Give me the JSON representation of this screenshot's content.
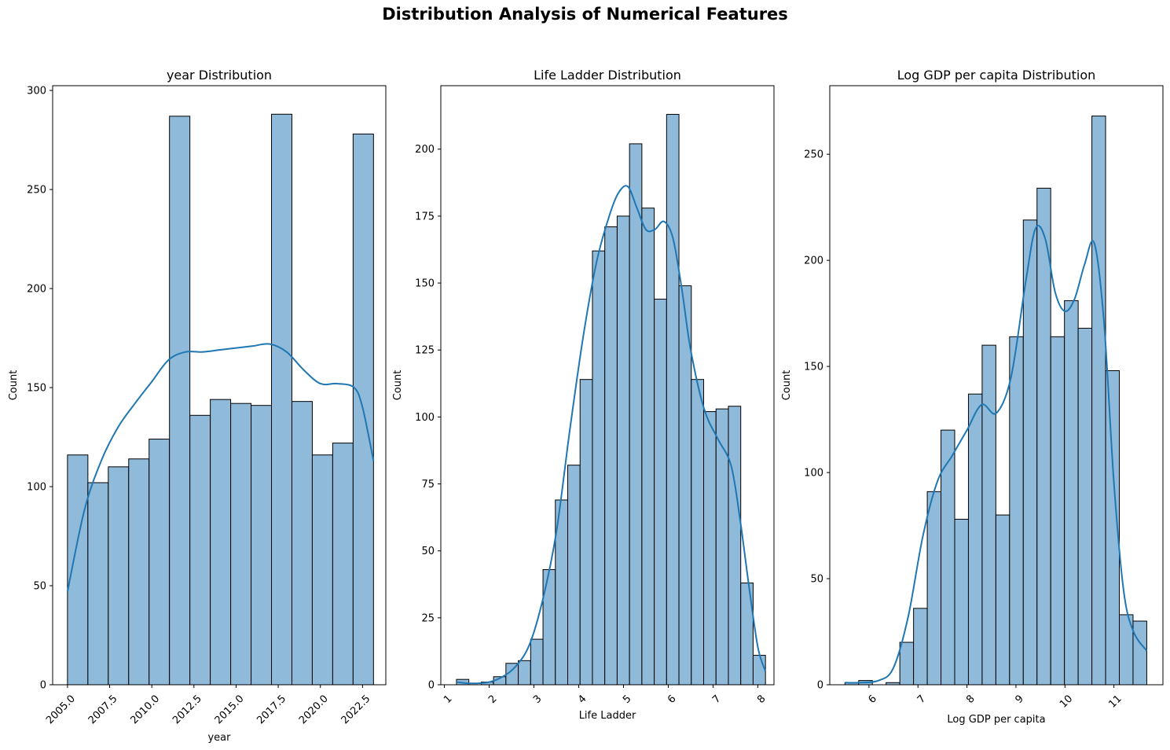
{
  "figure": {
    "title": "Distribution Analysis of Numerical Features"
  },
  "colors": {
    "bar_fill": "#8fbad9",
    "bar_edge": "#000000",
    "kde": "#1f77b4"
  },
  "chart_data": [
    {
      "type": "histogram",
      "title": "year Distribution",
      "xlabel": "year",
      "ylabel": "Count",
      "xlim": [
        2004.12,
        2023.88
      ],
      "ylim": [
        0,
        302.4
      ],
      "xticks": [
        2005.0,
        2007.5,
        2010.0,
        2012.5,
        2015.0,
        2017.5,
        2020.0,
        2022.5
      ],
      "xtick_labels": [
        "2005.0",
        "2007.5",
        "2010.0",
        "2012.5",
        "2015.0",
        "2017.5",
        "2020.0",
        "2022.5"
      ],
      "xtick_rotation": -45,
      "yticks": [
        0,
        50,
        100,
        150,
        200,
        250,
        300
      ],
      "ytick_labels": [
        "0",
        "50",
        "100",
        "150",
        "200",
        "250",
        "300"
      ],
      "bin_edges": [
        2005.0,
        2006.21,
        2007.42,
        2008.63,
        2009.84,
        2011.05,
        2012.26,
        2013.47,
        2014.68,
        2015.89,
        2017.1,
        2018.31,
        2019.52,
        2020.73,
        2021.94,
        2023.15
      ],
      "counts": [
        116,
        102,
        110,
        114,
        124,
        287,
        136,
        144,
        142,
        141,
        288,
        143,
        116,
        122,
        278
      ],
      "kde": {
        "x": [
          2005.0,
          2006.0,
          2007.0,
          2008.0,
          2009.0,
          2010.0,
          2011.0,
          2012.0,
          2013.0,
          2014.0,
          2015.0,
          2016.0,
          2017.0,
          2018.0,
          2019.0,
          2020.0,
          2021.0,
          2022.0,
          2022.5,
          2023.15
        ],
        "y": [
          47,
          88,
          113,
          130,
          142,
          153,
          164,
          168,
          168,
          169,
          170,
          171,
          172,
          168,
          159,
          152,
          152,
          150,
          140,
          113
        ]
      }
    },
    {
      "type": "histogram",
      "title": "Life Ladder Distribution",
      "xlabel": "Life Ladder",
      "ylabel": "Count",
      "xlim": [
        0.92,
        8.36
      ],
      "ylim": [
        0,
        223.7
      ],
      "xticks": [
        1,
        2,
        3,
        4,
        5,
        6,
        7,
        8
      ],
      "xtick_labels": [
        "1",
        "2",
        "3",
        "4",
        "5",
        "6",
        "7",
        "8"
      ],
      "xtick_rotation": -45,
      "yticks": [
        0,
        25,
        50,
        75,
        100,
        125,
        150,
        175,
        200
      ],
      "ytick_labels": [
        "0",
        "25",
        "50",
        "75",
        "100",
        "125",
        "150",
        "175",
        "200"
      ],
      "bin_edges": [
        1.27,
        1.546,
        1.822,
        2.098,
        2.374,
        2.65,
        2.926,
        3.202,
        3.478,
        3.754,
        4.03,
        4.306,
        4.582,
        4.858,
        5.134,
        5.41,
        5.686,
        5.962,
        6.238,
        6.514,
        6.79,
        7.066,
        7.342,
        7.618,
        7.894,
        8.17
      ],
      "counts": [
        2,
        0,
        1,
        3,
        8,
        9,
        17,
        43,
        69,
        82,
        114,
        162,
        171,
        175,
        202,
        178,
        144,
        213,
        149,
        114,
        102,
        103,
        104,
        38,
        11
      ],
      "kde": {
        "x": [
          1.27,
          1.6,
          2.0,
          2.3,
          2.6,
          2.9,
          3.2,
          3.5,
          3.8,
          4.1,
          4.4,
          4.7,
          4.9,
          5.1,
          5.3,
          5.5,
          5.7,
          5.9,
          6.1,
          6.3,
          6.5,
          6.8,
          7.1,
          7.4,
          7.6,
          7.8,
          8.0,
          8.17
        ],
        "y": [
          1,
          0.5,
          1,
          3,
          7,
          15,
          32,
          57,
          95,
          130,
          158,
          176,
          184,
          186,
          178,
          170,
          170,
          173,
          167,
          148,
          125,
          103,
          92,
          82,
          62,
          37,
          14,
          5
        ]
      }
    },
    {
      "type": "histogram",
      "title": "Log GDP per capita Distribution",
      "xlabel": "Log GDP per capita",
      "ylabel": "Count",
      "xlim": [
        5.2,
        12.0
      ],
      "ylim": [
        0,
        282.3
      ],
      "xticks": [
        6,
        7,
        8,
        9,
        10,
        11
      ],
      "xtick_labels": [
        "6",
        "7",
        "8",
        "9",
        "10",
        "11"
      ],
      "xtick_rotation": -45,
      "yticks": [
        0,
        50,
        100,
        150,
        200,
        250
      ],
      "ytick_labels": [
        "0",
        "50",
        "100",
        "150",
        "200",
        "250"
      ],
      "bin_edges": [
        5.51,
        5.79,
        6.07,
        6.35,
        6.63,
        6.91,
        7.19,
        7.47,
        7.75,
        8.03,
        8.31,
        8.59,
        8.87,
        9.15,
        9.43,
        9.71,
        9.99,
        10.27,
        10.55,
        10.83,
        11.11,
        11.39,
        11.67
      ],
      "counts": [
        1,
        2,
        0,
        1,
        20,
        36,
        91,
        120,
        78,
        137,
        160,
        80,
        164,
        219,
        234,
        164,
        181,
        168,
        268,
        148,
        33,
        30
      ],
      "kde": {
        "x": [
          5.51,
          5.8,
          6.2,
          6.5,
          6.8,
          7.1,
          7.4,
          7.7,
          8.0,
          8.3,
          8.6,
          8.9,
          9.2,
          9.4,
          9.6,
          9.8,
          10.0,
          10.2,
          10.4,
          10.6,
          10.8,
          11.0,
          11.2,
          11.4,
          11.67
        ],
        "y": [
          1,
          1,
          2,
          8,
          32,
          70,
          96,
          108,
          120,
          132,
          128,
          145,
          190,
          215,
          210,
          185,
          176,
          182,
          198,
          208,
          170,
          95,
          44,
          25,
          16
        ]
      }
    }
  ]
}
